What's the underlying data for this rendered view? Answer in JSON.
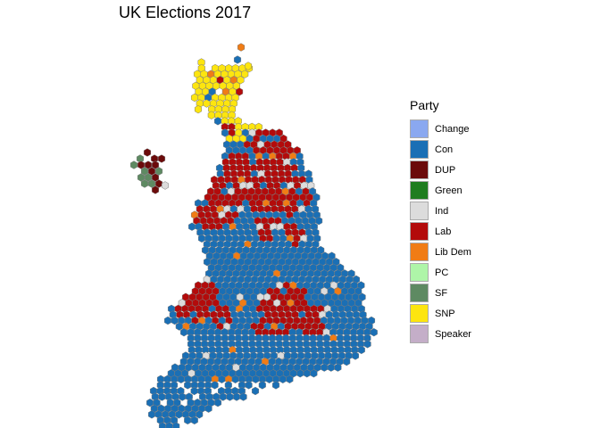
{
  "title": "UK Elections 2017",
  "legend": {
    "title": "Party",
    "items": [
      {
        "label": "Change",
        "color": "#8aa8f0"
      },
      {
        "label": "Con",
        "color": "#1a6fb5"
      },
      {
        "label": "DUP",
        "color": "#6b0a0a"
      },
      {
        "label": "Green",
        "color": "#1f7d1f"
      },
      {
        "label": "Ind",
        "color": "#dcdcdc"
      },
      {
        "label": "Lab",
        "color": "#b30b0b"
      },
      {
        "label": "Lib Dem",
        "color": "#f07c15"
      },
      {
        "label": "PC",
        "color": "#aef5a8"
      },
      {
        "label": "SF",
        "color": "#5e8a62"
      },
      {
        "label": "SNP",
        "color": "#fde50f"
      },
      {
        "label": "Speaker",
        "color": "#c4aec8"
      }
    ]
  }
}
